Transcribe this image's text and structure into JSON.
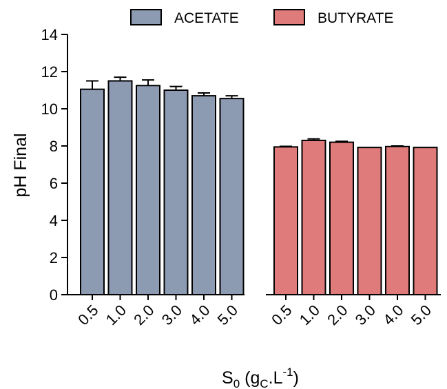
{
  "chart_data": {
    "type": "bar",
    "ylabel": "pH Final",
    "xlabel": {
      "base": "S",
      "base_sub": "0",
      "open": " (g",
      "unit_sub": "C",
      "mid": ".L",
      "unit_sup": "-1",
      "close": ")"
    },
    "ylim": [
      0,
      14
    ],
    "yticks": [
      0,
      2,
      4,
      6,
      8,
      10,
      12,
      14
    ],
    "legend_position": "top",
    "grid": false,
    "groups": [
      {
        "name": "ACETATE",
        "color": "#8c9ab2",
        "categories": [
          "0.5",
          "1.0",
          "2.0",
          "3.0",
          "4.0",
          "5.0"
        ],
        "values": [
          11.05,
          11.5,
          11.25,
          11.0,
          10.7,
          10.55
        ],
        "errors": [
          0.45,
          0.2,
          0.3,
          0.2,
          0.15,
          0.15
        ]
      },
      {
        "name": "BUTYRATE",
        "color": "#e07b7b",
        "categories": [
          "0.5",
          "1.0",
          "2.0",
          "3.0",
          "4.0",
          "5.0"
        ],
        "values": [
          7.95,
          8.3,
          8.2,
          7.92,
          7.97,
          7.92
        ],
        "errors": [
          0.03,
          0.08,
          0.05,
          0.0,
          0.03,
          0.0
        ]
      }
    ]
  }
}
